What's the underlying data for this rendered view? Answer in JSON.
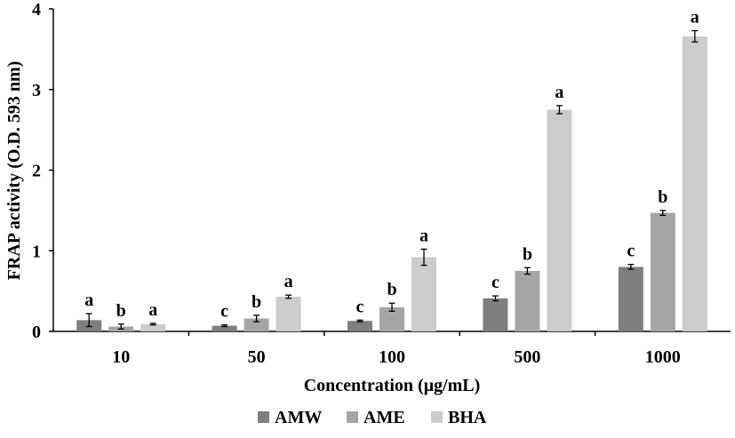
{
  "chart_data": {
    "type": "bar",
    "title": "",
    "xlabel": "Concentration (μg/mL)",
    "ylabel": "FRAP activity (O.D. 593 nm)",
    "ylim": [
      0,
      4
    ],
    "yticks": [
      "0",
      "1",
      "2",
      "3",
      "4"
    ],
    "categories": [
      "10",
      "50",
      "100",
      "500",
      "1000"
    ],
    "grid": false,
    "legend_position": "bottom",
    "series": [
      {
        "name": "AMW",
        "color": "#7f7f7f",
        "values": [
          0.14,
          0.07,
          0.13,
          0.41,
          0.8
        ],
        "errors": [
          0.08,
          0.01,
          0.01,
          0.03,
          0.03
        ],
        "significance": [
          "a",
          "c",
          "c",
          "c",
          "c"
        ]
      },
      {
        "name": "AME",
        "color": "#a5a5a5",
        "values": [
          0.06,
          0.16,
          0.3,
          0.75,
          1.47
        ],
        "errors": [
          0.03,
          0.04,
          0.05,
          0.04,
          0.03
        ],
        "significance": [
          "b",
          "b",
          "b",
          "b",
          "b"
        ]
      },
      {
        "name": "BHA",
        "color": "#cccccc",
        "values": [
          0.09,
          0.43,
          0.92,
          2.75,
          3.66
        ],
        "errors": [
          0.01,
          0.02,
          0.1,
          0.05,
          0.07
        ],
        "significance": [
          "a",
          "a",
          "a",
          "a",
          "a"
        ]
      }
    ]
  }
}
